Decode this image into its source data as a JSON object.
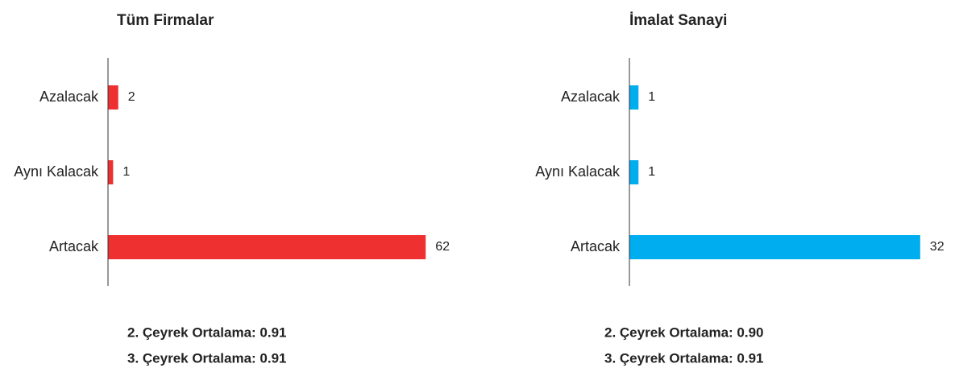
{
  "chart_data": [
    {
      "type": "bar",
      "orientation": "horizontal",
      "title": "Tüm Firmalar",
      "categories": [
        "Azalacak",
        "Aynı Kalacak",
        "Artacak"
      ],
      "values": [
        2,
        1,
        62
      ],
      "color": "#ef3030",
      "xlim": [
        0,
        67
      ],
      "annotations": [
        "2. Çeyrek Ortalama: 0.91",
        "3. Çeyrek Ortalama: 0.91"
      ]
    },
    {
      "type": "bar",
      "orientation": "horizontal",
      "title": "İmalat Sanayi",
      "categories": [
        "Azalacak",
        "Aynı Kalacak",
        "Artacak"
      ],
      "values": [
        1,
        1,
        32
      ],
      "color": "#00adee",
      "xlim": [
        0,
        34.5
      ],
      "annotations": [
        "2. Çeyrek Ortalama: 0.90",
        "3. Çeyrek Ortalama: 0.91"
      ]
    }
  ]
}
